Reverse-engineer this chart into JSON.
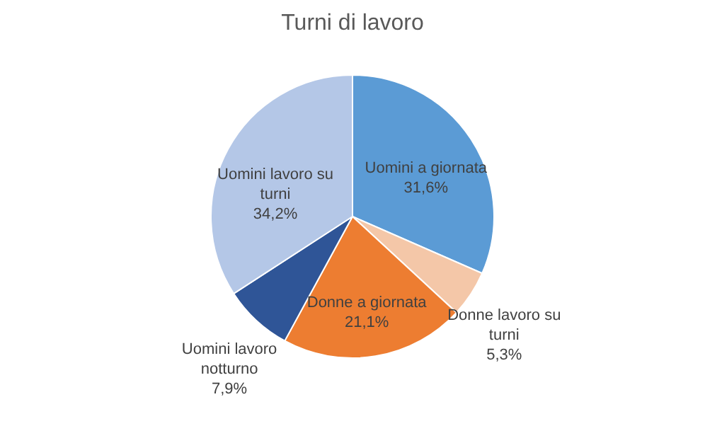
{
  "chart_data": {
    "type": "pie",
    "title": "Turni di lavoro",
    "categories": [
      "Uomini a giornata",
      "Donne lavoro su turni",
      "Donne a giornata",
      "Uomini lavoro notturno",
      "Uomini lavoro su turni"
    ],
    "values": [
      31.6,
      5.3,
      21.1,
      7.9,
      34.2
    ],
    "colors": [
      "#5b9bd5",
      "#f4c7a8",
      "#ed7d31",
      "#2f5597",
      "#b4c7e7"
    ],
    "value_labels": [
      "31,6%",
      "5,3%",
      "21,1%",
      "7,9%",
      "34,2%"
    ],
    "legend": false
  }
}
